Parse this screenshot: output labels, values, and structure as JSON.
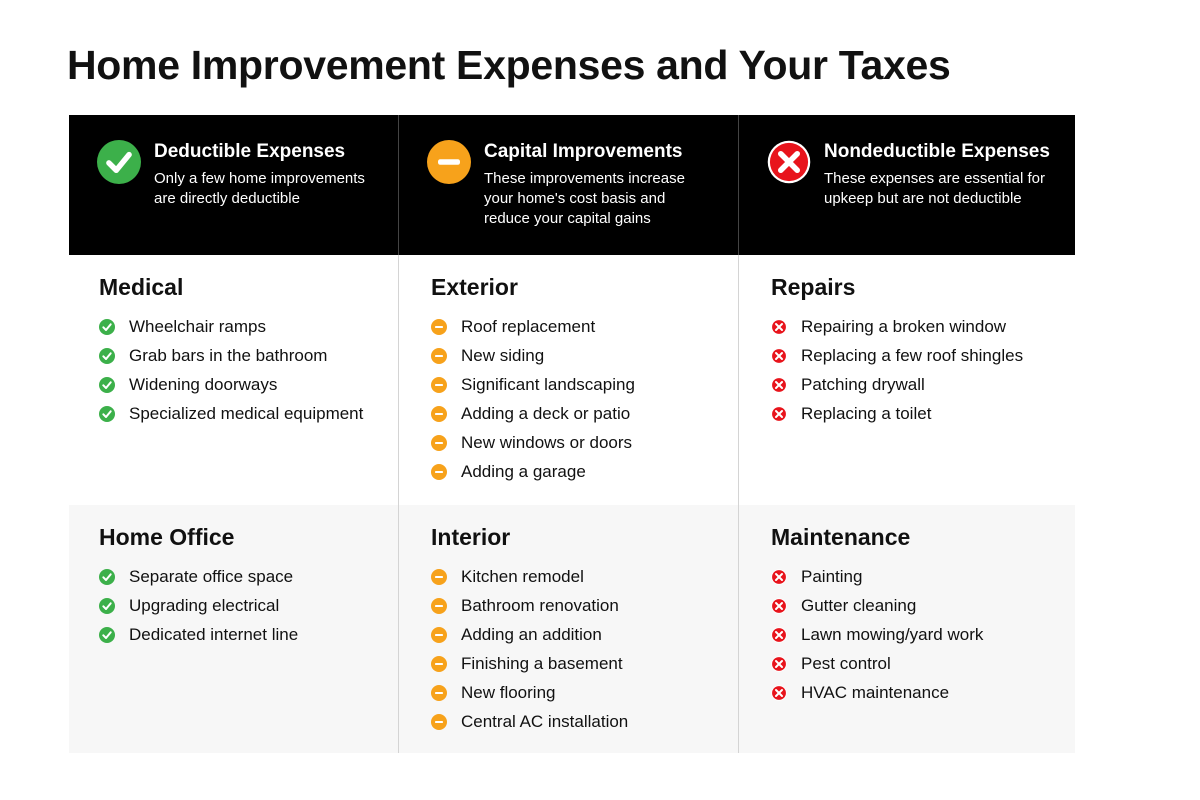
{
  "title": "Home Improvement Expenses and Your Taxes",
  "columns": [
    {
      "heading": "Deductible Expenses",
      "description": [
        "Only a few home improvements",
        "are directly deductible"
      ]
    },
    {
      "heading": "Capital Improvements",
      "description": [
        "These improvements increase",
        "your home's cost basis and",
        "reduce your capital gains"
      ]
    },
    {
      "heading": "Nondeductible Expenses",
      "description": [
        "These expenses are essential for",
        "upkeep but are not deductible"
      ]
    }
  ],
  "rows": [
    [
      {
        "title": "Medical",
        "items": [
          "Wheelchair ramps",
          "Grab bars in the bathroom",
          "Widening doorways",
          "Specialized medical equipment"
        ]
      },
      {
        "title": "Exterior",
        "items": [
          "Roof replacement",
          "New siding",
          "Significant landscaping",
          "Adding a deck or patio",
          "New windows or doors",
          "Adding a garage"
        ]
      },
      {
        "title": "Repairs",
        "items": [
          "Repairing a broken window",
          "Replacing a few roof shingles",
          "Patching drywall",
          "Replacing a toilet"
        ]
      }
    ],
    [
      {
        "title": "Home Office",
        "items": [
          "Separate office space",
          "Upgrading electrical",
          "Dedicated internet line"
        ]
      },
      {
        "title": "Interior",
        "items": [
          "Kitchen remodel",
          "Bathroom renovation",
          "Adding an addition",
          "Finishing a basement",
          "New flooring",
          "Central AC installation"
        ]
      },
      {
        "title": "Maintenance",
        "items": [
          "Painting",
          "Gutter cleaning",
          "Lawn mowing/yard work",
          "Pest control",
          "HVAC maintenance"
        ]
      }
    ]
  ]
}
